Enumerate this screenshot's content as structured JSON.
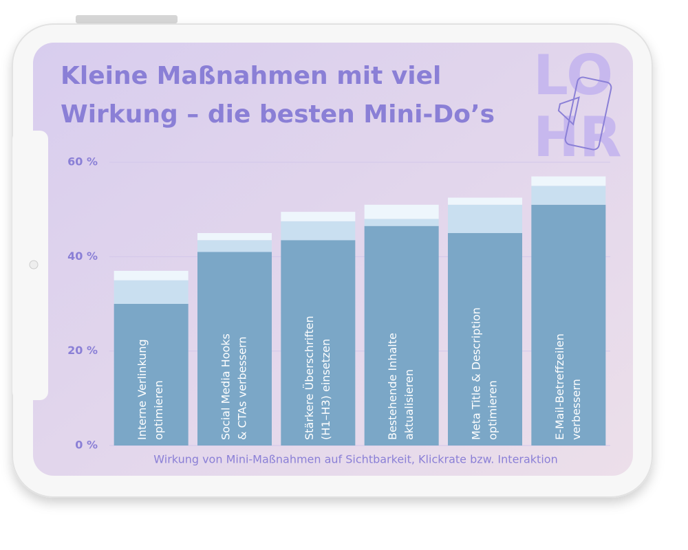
{
  "chart_data": {
    "type": "bar",
    "stacked": true,
    "title": [
      "Kleine Maßnahmen mit viel",
      "Wirkung – die besten Mini-Do’s"
    ],
    "x_label": "Wirkung von Mini-Maßnahmen auf Sichtbarkeit, Klickrate bzw. Interaktion",
    "logo": [
      "LO",
      "HR"
    ],
    "categories": [
      [
        "Interne Verlinkung",
        "optimieren"
      ],
      [
        "Social Media Hooks",
        "& CTAs verbessern"
      ],
      [
        "Stärkere Überschriften",
        "(H1–H3) einsetzen"
      ],
      [
        "Bestehende Inhalte",
        "aktualisieren"
      ],
      [
        "Meta Title & Description",
        "optimieren"
      ],
      [
        "E-Mail-Betreffzeilen",
        "verbessern"
      ]
    ],
    "series": [
      {
        "color": "#7ba7c7",
        "values": [
          30,
          41,
          43.5,
          46.5,
          45,
          51
        ]
      },
      {
        "color": "#c9dff0",
        "values": [
          5,
          2.5,
          4,
          1.5,
          6,
          4
        ]
      },
      {
        "color": "#eef6fc",
        "values": [
          2,
          1.5,
          2,
          3,
          1.5,
          2
        ]
      }
    ],
    "ylim": [
      0,
      60
    ],
    "yticks": [
      {
        "value": 0,
        "label": "0 %"
      },
      {
        "value": 20,
        "label": "20 %"
      },
      {
        "value": 40,
        "label": "40 %"
      },
      {
        "value": 60,
        "label": "60 %"
      }
    ],
    "grid": true
  }
}
